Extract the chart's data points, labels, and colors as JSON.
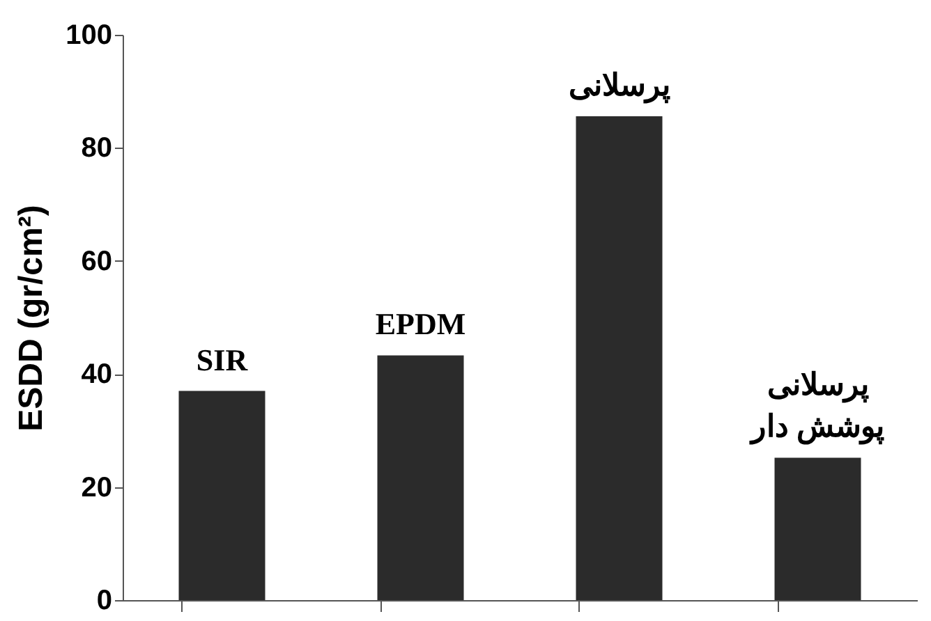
{
  "chart_data": {
    "type": "bar",
    "ylabel": "ESDD (gr/cm²)",
    "categories": [
      "SIR",
      "EPDM",
      "پرسلانی",
      "پرسلانی\nپوشش دار"
    ],
    "values": [
      37,
      43.3,
      85.6,
      25.2
    ],
    "color": "#2b2b2b",
    "ylim": [
      0,
      100
    ],
    "yticks": [
      0,
      20,
      40,
      60,
      80,
      100
    ],
    "grid": false,
    "tick_labels": "y"
  }
}
